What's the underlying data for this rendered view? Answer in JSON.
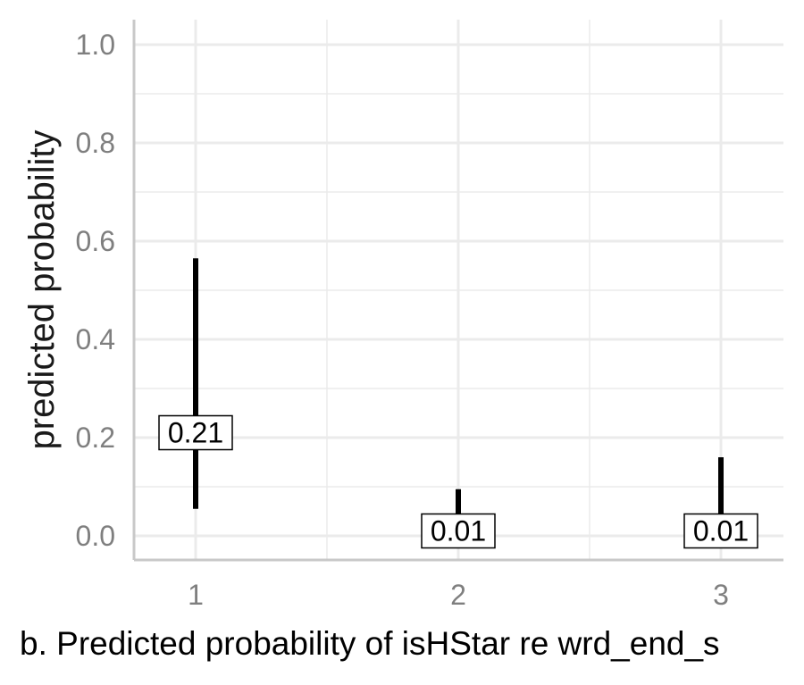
{
  "chart_data": {
    "type": "errorbar",
    "categories": [
      "1",
      "2",
      "3"
    ],
    "estimates": [
      0.21,
      0.01,
      0.01
    ],
    "estimate_labels": [
      "0.21",
      "0.01",
      "0.01"
    ],
    "lower": [
      0.055,
      0.0,
      0.0
    ],
    "upper": [
      0.565,
      0.095,
      0.16
    ],
    "ylim": [
      0.0,
      1.0
    ],
    "yticks": [
      "0.0",
      "0.2",
      "0.4",
      "0.6",
      "0.8",
      "1.0"
    ],
    "ylabel": "predicted probability",
    "xlabel": "",
    "grid": true,
    "colors": {
      "bar": "#000000",
      "grid": "#ebebeb",
      "axis": "#c8c8c8"
    }
  },
  "caption": "b. Predicted probability of isHStar re wrd_end_s"
}
